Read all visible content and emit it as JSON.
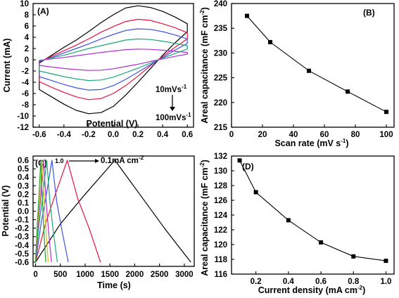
{
  "chart_data": [
    {
      "panel": "A",
      "type": "line",
      "xlabel": "Potential (V)",
      "ylabel": "Current (mA)",
      "xlim": [
        -0.65,
        0.65
      ],
      "ylim": [
        -12,
        10
      ],
      "xticks": [
        -0.6,
        -0.4,
        -0.2,
        0.0,
        0.2,
        0.4,
        0.6
      ],
      "xtick_labels": [
        "-0.6",
        "-0.4",
        "-0.2",
        "0.0",
        "0.2",
        "0.4",
        "0.6"
      ],
      "yticks": [
        -12,
        -10,
        -8,
        -6,
        -4,
        -2,
        0,
        2,
        4,
        6,
        8,
        10
      ],
      "ytick_labels": [
        "-12",
        "-10",
        "-8",
        "-6",
        "-4",
        "-2",
        "0",
        "2",
        "4",
        "6",
        "8",
        "10"
      ],
      "annotation_top": "10mVs",
      "annotation_bottom": "100mVs",
      "annotation_exp": "-1",
      "series": [
        {
          "color": "#000000",
          "x": [
            -0.6,
            -0.5,
            -0.4,
            -0.3,
            -0.2,
            -0.1,
            0.0,
            0.1,
            0.2,
            0.3,
            0.4,
            0.5,
            0.6,
            0.6,
            0.5,
            0.4,
            0.3,
            0.2,
            0.1,
            0.0,
            -0.1,
            -0.2,
            -0.3,
            -0.4,
            -0.5,
            -0.6,
            -0.6
          ],
          "y": [
            -0.6,
            0.8,
            2.2,
            3.5,
            5.0,
            6.6,
            8.0,
            9.2,
            9.6,
            9.3,
            8.6,
            7.6,
            6.4,
            5.0,
            3.0,
            0.8,
            -1.6,
            -4.0,
            -6.3,
            -8.3,
            -9.4,
            -9.6,
            -9.0,
            -7.9,
            -6.6,
            -5.3,
            -0.6
          ]
        },
        {
          "color": "#e8133c",
          "x": [
            -0.6,
            -0.5,
            -0.4,
            -0.3,
            -0.2,
            -0.1,
            0.0,
            0.1,
            0.2,
            0.3,
            0.4,
            0.5,
            0.6,
            0.6,
            0.5,
            0.4,
            0.3,
            0.2,
            0.1,
            0.0,
            -0.1,
            -0.2,
            -0.3,
            -0.4,
            -0.5,
            -0.6,
            -0.6
          ],
          "y": [
            -0.4,
            0.6,
            1.6,
            2.6,
            3.7,
            4.9,
            5.9,
            6.8,
            7.2,
            7.0,
            6.4,
            5.7,
            4.8,
            3.7,
            2.2,
            0.6,
            -1.1,
            -2.9,
            -4.6,
            -6.0,
            -6.9,
            -7.1,
            -6.6,
            -5.8,
            -4.9,
            -3.9,
            -0.4
          ]
        },
        {
          "color": "#3f51e8",
          "x": [
            -0.6,
            -0.5,
            -0.4,
            -0.3,
            -0.2,
            -0.1,
            0.0,
            0.1,
            0.2,
            0.3,
            0.4,
            0.5,
            0.6,
            0.6,
            0.5,
            0.4,
            0.3,
            0.2,
            0.1,
            0.0,
            -0.1,
            -0.2,
            -0.3,
            -0.4,
            -0.5,
            -0.6,
            -0.6
          ],
          "y": [
            -0.3,
            0.4,
            1.2,
            2.0,
            2.8,
            3.7,
            4.5,
            5.2,
            5.5,
            5.4,
            5.0,
            4.4,
            3.7,
            2.9,
            1.7,
            0.4,
            -0.9,
            -2.2,
            -3.5,
            -4.6,
            -5.3,
            -5.4,
            -5.0,
            -4.4,
            -3.7,
            -3.0,
            -0.3
          ]
        },
        {
          "color": "#1aa87a",
          "x": [
            -0.6,
            -0.5,
            -0.4,
            -0.3,
            -0.2,
            -0.1,
            0.0,
            0.1,
            0.2,
            0.3,
            0.4,
            0.5,
            0.6,
            0.6,
            0.5,
            0.4,
            0.3,
            0.2,
            0.1,
            0.0,
            -0.1,
            -0.2,
            -0.3,
            -0.4,
            -0.5,
            -0.6,
            -0.6
          ],
          "y": [
            -0.2,
            0.3,
            0.8,
            1.4,
            2.0,
            2.5,
            3.0,
            3.5,
            3.7,
            3.6,
            3.3,
            2.9,
            2.5,
            1.9,
            1.1,
            0.3,
            -0.6,
            -1.5,
            -2.3,
            -3.1,
            -3.6,
            -3.7,
            -3.4,
            -3.0,
            -2.5,
            -2.0,
            -0.2
          ]
        },
        {
          "color": "#b02fd0",
          "x": [
            -0.6,
            -0.5,
            -0.4,
            -0.3,
            -0.2,
            -0.1,
            0.0,
            0.1,
            0.2,
            0.3,
            0.4,
            0.5,
            0.6,
            0.6,
            0.5,
            0.4,
            0.3,
            0.2,
            0.1,
            0.0,
            -0.1,
            -0.2,
            -0.3,
            -0.4,
            -0.5,
            -0.6,
            -0.6
          ],
          "y": [
            -0.1,
            0.15,
            0.4,
            0.7,
            1.0,
            1.3,
            1.55,
            1.8,
            1.9,
            1.85,
            1.7,
            1.5,
            1.3,
            1.0,
            0.6,
            0.15,
            -0.3,
            -0.8,
            -1.2,
            -1.6,
            -1.85,
            -1.9,
            -1.75,
            -1.55,
            -1.3,
            -1.0,
            -0.1
          ]
        }
      ]
    },
    {
      "panel": "B",
      "type": "line",
      "xlabel": "Scan rate (mV s",
      "xlabel_exp": "-1",
      "xlabel_end": ")",
      "ylabel": "Areal capacitance (mF cm",
      "ylabel_exp": "-2",
      "ylabel_end": ")",
      "xlim": [
        0,
        105
      ],
      "ylim": [
        215,
        240
      ],
      "xticks": [
        0,
        20,
        40,
        60,
        80,
        100
      ],
      "xtick_labels": [
        "0",
        "20",
        "40",
        "60",
        "80",
        "100"
      ],
      "yticks": [
        215,
        220,
        225,
        230,
        235,
        240
      ],
      "ytick_labels": [
        "215",
        "220",
        "225",
        "230",
        "235",
        "240"
      ],
      "x": [
        10,
        25,
        50,
        75,
        100
      ],
      "y": [
        237.5,
        232.2,
        226.4,
        222.2,
        218.1
      ]
    },
    {
      "panel": "C",
      "type": "line",
      "xlabel": "Time (s)",
      "ylabel": "Potential (V)",
      "xlim": [
        -50,
        3200
      ],
      "ylim": [
        -0.65,
        0.65
      ],
      "xticks": [
        0,
        500,
        1000,
        1500,
        2000,
        2500,
        3000
      ],
      "xtick_labels": [
        "0",
        "500",
        "1000",
        "1500",
        "2000",
        "2500",
        "3000"
      ],
      "yticks": [
        -0.6,
        -0.5,
        -0.4,
        -0.3,
        -0.2,
        -0.1,
        0.0,
        0.1,
        0.2,
        0.3,
        0.4,
        0.5,
        0.6
      ],
      "ytick_labels": [
        "-0.6",
        "-0.5",
        "-0.4",
        "-0.3",
        "-0.2",
        "-0.1",
        "0.0",
        "0.1",
        "0.2",
        "0.3",
        "0.4",
        "0.5",
        "0.6"
      ],
      "annotation_start": "1.0",
      "annotation_end": "0.1mA cm",
      "annotation_exp": "-2",
      "series": [
        {
          "color": "#000000",
          "x": [
            0,
            500,
            1000,
            1600,
            2100,
            2600,
            3130
          ],
          "y": [
            -0.6,
            -0.15,
            0.2,
            0.6,
            0.2,
            -0.2,
            -0.6
          ]
        },
        {
          "color": "#e8133c",
          "x": [
            0,
            200,
            400,
            640,
            850,
            1080,
            1310
          ],
          "y": [
            -0.6,
            -0.15,
            0.2,
            0.6,
            0.15,
            -0.2,
            -0.6
          ]
        },
        {
          "color": "#3f51e8",
          "x": [
            0,
            110,
            220,
            330,
            430,
            540,
            660
          ],
          "y": [
            -0.6,
            -0.15,
            0.2,
            0.6,
            0.1,
            -0.25,
            -0.6
          ]
        },
        {
          "color": "#1aa87a",
          "x": [
            0,
            70,
            150,
            225,
            290,
            360,
            440
          ],
          "y": [
            -0.6,
            -0.15,
            0.2,
            0.6,
            0.1,
            -0.25,
            -0.6
          ]
        },
        {
          "color": "#b02fd0",
          "x": [
            0,
            55,
            110,
            160,
            215,
            265,
            320
          ],
          "y": [
            -0.6,
            -0.15,
            0.2,
            0.6,
            0.1,
            -0.25,
            -0.6
          ]
        },
        {
          "color": "#d4c12a",
          "x": [
            0,
            45,
            90,
            130,
            175,
            215,
            255
          ],
          "y": [
            -0.6,
            -0.15,
            0.2,
            0.6,
            0.1,
            -0.25,
            -0.6
          ]
        },
        {
          "color": "#2a9c2a",
          "x": [
            0,
            35,
            70,
            105,
            140,
            170,
            205
          ],
          "y": [
            -0.6,
            -0.15,
            0.2,
            0.6,
            0.1,
            -0.25,
            -0.6
          ]
        }
      ]
    },
    {
      "panel": "D",
      "type": "line",
      "xlabel": "Current density (mA cm",
      "xlabel_exp": "-2",
      "xlabel_end": ")",
      "ylabel": "Areal capacitance (mF cm",
      "ylabel_exp": "-2",
      "ylabel_end": ")",
      "xlim": [
        0.05,
        1.05
      ],
      "ylim": [
        116,
        132
      ],
      "xticks": [
        0.2,
        0.4,
        0.6,
        0.8,
        1.0
      ],
      "xtick_labels": [
        "0.2",
        "0.4",
        "0.6",
        "0.8",
        "1.0"
      ],
      "yticks": [
        116,
        118,
        120,
        122,
        124,
        126,
        128,
        130,
        132
      ],
      "ytick_labels": [
        "116",
        "118",
        "120",
        "122",
        "124",
        "126",
        "128",
        "130",
        "132"
      ],
      "x": [
        0.1,
        0.2,
        0.4,
        0.6,
        0.8,
        1.0
      ],
      "y": [
        131.4,
        127.1,
        123.3,
        120.3,
        118.4,
        117.8
      ]
    }
  ]
}
